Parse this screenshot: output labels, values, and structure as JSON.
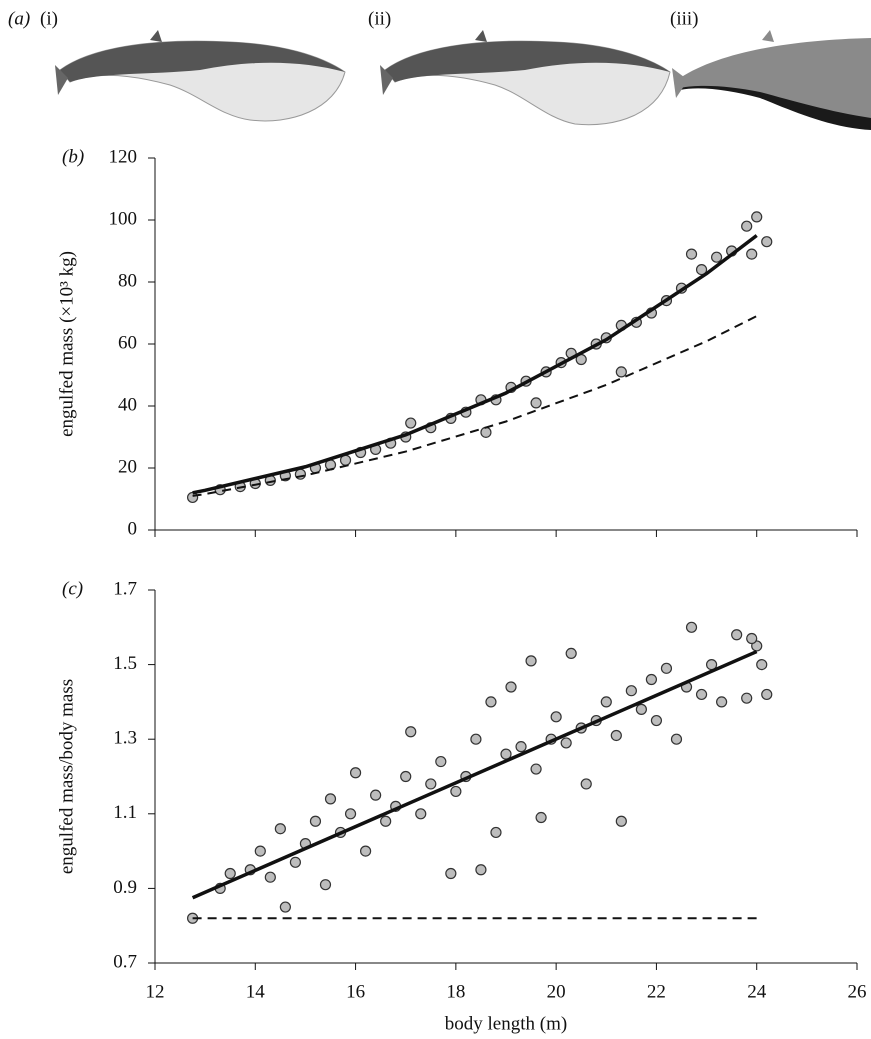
{
  "illustrations": {
    "panel_label": "(a)",
    "labels": [
      "(i)",
      "(ii)",
      "(iii)"
    ]
  },
  "chart_data": [
    {
      "type": "scatter",
      "panel_label": "(b)",
      "y_label": "engulfed mass (×10³ kg)",
      "xlim": [
        12,
        26
      ],
      "xticks": [
        12,
        14,
        16,
        18,
        20,
        22,
        24,
        26
      ],
      "show_xtick_labels": false,
      "ylim": [
        0,
        120
      ],
      "yticks": [
        0,
        20,
        40,
        60,
        80,
        100,
        120
      ],
      "series": [
        {
          "type": "scatter",
          "color": "#bdbdbd",
          "x": [
            12.75,
            13.3,
            13.7,
            14,
            14.3,
            14.6,
            14.9,
            15.2,
            15.5,
            15.8,
            16.1,
            16.4,
            16.7,
            17,
            17.1,
            17.5,
            17.9,
            18.2,
            18.5,
            18.6,
            18.8,
            19.1,
            19.4,
            19.6,
            19.8,
            20.1,
            20.3,
            20.5,
            20.8,
            21,
            21.3,
            21.3,
            21.6,
            21.9,
            22.2,
            22.5,
            22.7,
            22.9,
            23.2,
            23.5,
            23.8,
            24,
            24.2,
            23.9
          ],
          "values": [
            10.5,
            13,
            14,
            15,
            16,
            17.5,
            18,
            20,
            21,
            22.5,
            25,
            26,
            28,
            30,
            34.5,
            33,
            36,
            38,
            42,
            31.5,
            42,
            46,
            48,
            41,
            51,
            54,
            57,
            55,
            60,
            62,
            51,
            66,
            67,
            70,
            74,
            78,
            89,
            84,
            88,
            90,
            98,
            101,
            93,
            89
          ]
        },
        {
          "type": "line",
          "color": "#111111",
          "dashed": false,
          "x": [
            12.75,
            13,
            15,
            17,
            19,
            21,
            23,
            24
          ],
          "values": [
            12,
            12.8,
            20.4,
            30.7,
            44.2,
            61.4,
            82.7,
            95
          ]
        },
        {
          "type": "line",
          "color": "#111111",
          "dashed": true,
          "x": [
            12.75,
            13,
            15,
            17,
            19,
            21,
            23,
            24
          ],
          "values": [
            11,
            11.6,
            17.6,
            25.3,
            35,
            46.8,
            60.9,
            69
          ]
        }
      ]
    },
    {
      "type": "scatter",
      "panel_label": "(c)",
      "y_label": "engulfed mass/body mass",
      "x_label": "body length (m)",
      "xlim": [
        12,
        26
      ],
      "xticks": [
        12,
        14,
        16,
        18,
        20,
        22,
        24,
        26
      ],
      "show_xtick_labels": true,
      "ylim": [
        0.7,
        1.7
      ],
      "yticks": [
        0.7,
        0.9,
        1.1,
        1.3,
        1.5,
        1.7
      ],
      "series": [
        {
          "type": "scatter",
          "color": "#bdbdbd",
          "x": [
            12.75,
            13.3,
            13.5,
            13.9,
            14.1,
            14.3,
            14.5,
            14.6,
            14.8,
            15,
            15.2,
            15.4,
            15.5,
            15.7,
            15.9,
            16,
            16.2,
            16.4,
            16.6,
            16.8,
            17,
            17.1,
            17.3,
            17.5,
            17.7,
            17.9,
            18,
            18.2,
            18.4,
            18.5,
            18.7,
            18.8,
            19,
            19.1,
            19.3,
            19.5,
            19.6,
            19.7,
            19.9,
            20,
            20.2,
            20.3,
            20.5,
            20.6,
            20.8,
            21,
            21.2,
            21.3,
            21.5,
            21.7,
            21.9,
            22,
            22.2,
            22.4,
            22.6,
            22.7,
            22.9,
            23.1,
            23.3,
            23.6,
            23.8,
            24,
            24.1,
            24.2,
            23.9
          ],
          "values": [
            0.82,
            0.9,
            0.94,
            0.95,
            1,
            0.93,
            1.06,
            0.85,
            0.97,
            1.02,
            1.08,
            0.91,
            1.14,
            1.05,
            1.1,
            1.21,
            1,
            1.15,
            1.08,
            1.12,
            1.2,
            1.32,
            1.1,
            1.18,
            1.24,
            0.94,
            1.16,
            1.2,
            1.3,
            0.95,
            1.4,
            1.05,
            1.26,
            1.44,
            1.28,
            1.51,
            1.22,
            1.09,
            1.3,
            1.36,
            1.29,
            1.53,
            1.33,
            1.18,
            1.35,
            1.4,
            1.31,
            1.08,
            1.43,
            1.38,
            1.46,
            1.35,
            1.49,
            1.3,
            1.44,
            1.6,
            1.42,
            1.5,
            1.4,
            1.58,
            1.41,
            1.55,
            1.5,
            1.42,
            1.57
          ]
        },
        {
          "type": "line",
          "color": "#111111",
          "dashed": false,
          "x": [
            12.75,
            24
          ],
          "values": [
            0.875,
            1.535
          ]
        },
        {
          "type": "line",
          "color": "#111111",
          "dashed": true,
          "x": [
            12.75,
            24
          ],
          "values": [
            0.82,
            0.82
          ]
        }
      ]
    }
  ]
}
